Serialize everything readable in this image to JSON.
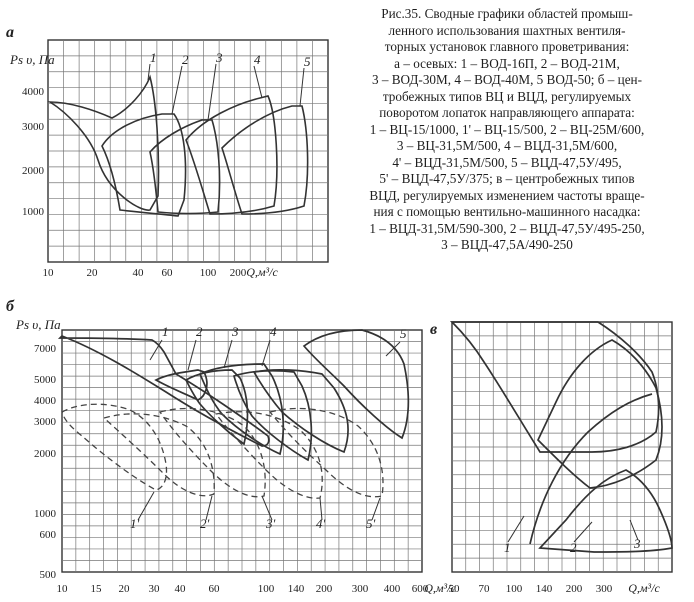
{
  "caption": {
    "lines": [
      "Рис.35. Сводные графики областей промыш-",
      "ленного использования шахтных вентиля-",
      "торных установок главного проветривания:",
      "а – осевых: 1 – ВОД-16П, 2 – ВОД-21М,",
      "3 – ВОД-30М, 4 – ВОД-40М, 5 ВОД-50; б – цен-",
      "тробежных типов ВЦ и ВЦД, регулируемых",
      "поворотом лопаток направляющего аппарата:",
      "1 – ВЦ-15/1000, 1' – ВЦ-15/500, 2 – ВЦ-25М/600,",
      "3 – ВЦ-31,5М/500, 4 – ВЦД-31,5М/600,",
      "4' – ВЦД-31,5М/500, 5 – ВЦД-47,5У/495,",
      "5' – ВЦД-47,5У/375; в – центробежных типов",
      "ВЦД, регулируемых изменением частоты враще-",
      "ния с помощью вентильно-машинного насадка:",
      "1 – ВЦД-31,5М/590-300, 2 – ВЦД-47,5У/495-250,",
      "3 – ВЦД-47,5А/490-250"
    ]
  },
  "chart_data": [
    {
      "panel": "а",
      "type": "area",
      "ylabel": "Ps υ, Па",
      "xlabel": "Q,м³/с",
      "y_scale": "log",
      "x_scale": "log",
      "ylim": [
        700,
        4600
      ],
      "xlim": [
        10,
        1000
      ],
      "y_ticks": [
        "4000",
        "3000",
        "2000",
        "1000"
      ],
      "x_ticks": [
        "10",
        "20",
        "40",
        "60",
        "100",
        "200"
      ],
      "grid": true,
      "series": [
        {
          "name": "1",
          "label": "1"
        },
        {
          "name": "2",
          "label": "2"
        },
        {
          "name": "3",
          "label": "3"
        },
        {
          "name": "4",
          "label": "4"
        },
        {
          "name": "5",
          "label": "5"
        }
      ]
    },
    {
      "panel": "б",
      "type": "area",
      "ylabel": "Ps υ, Па",
      "xlabel": "Q,м³/с",
      "y_scale": "log",
      "x_scale": "log",
      "ylim": [
        500,
        8000
      ],
      "xlim": [
        10,
        600
      ],
      "y_ticks": [
        "7000",
        "5000",
        "4000",
        "3000",
        "2000",
        "1000",
        "600",
        "500"
      ],
      "x_ticks": [
        "10",
        "15",
        "20",
        "30",
        "40",
        "60",
        "100",
        "140",
        "200",
        "300",
        "400",
        "600"
      ],
      "grid": true,
      "series": [
        {
          "name": "1",
          "label": "1",
          "style": "solid"
        },
        {
          "name": "1'",
          "label": "1'",
          "style": "dashed"
        },
        {
          "name": "2",
          "label": "2",
          "style": "solid"
        },
        {
          "name": "2'",
          "label": "2'",
          "style": "dashed"
        },
        {
          "name": "3",
          "label": "3",
          "style": "solid"
        },
        {
          "name": "3'",
          "label": "3'",
          "style": "dashed"
        },
        {
          "name": "4",
          "label": "4",
          "style": "solid"
        },
        {
          "name": "4'",
          "label": "4'",
          "style": "dashed"
        },
        {
          "name": "5",
          "label": "5",
          "style": "solid"
        },
        {
          "name": "5'",
          "label": "5'",
          "style": "dashed"
        }
      ]
    },
    {
      "panel": "в",
      "type": "area",
      "xlabel": "Q,м³/с",
      "x_scale": "log",
      "xlim": [
        50,
        700
      ],
      "x_ticks": [
        "50",
        "70",
        "100",
        "140",
        "200",
        "300"
      ],
      "grid": true,
      "series": [
        {
          "name": "1",
          "label": "1"
        },
        {
          "name": "2",
          "label": "2"
        },
        {
          "name": "3",
          "label": "3"
        }
      ]
    }
  ]
}
